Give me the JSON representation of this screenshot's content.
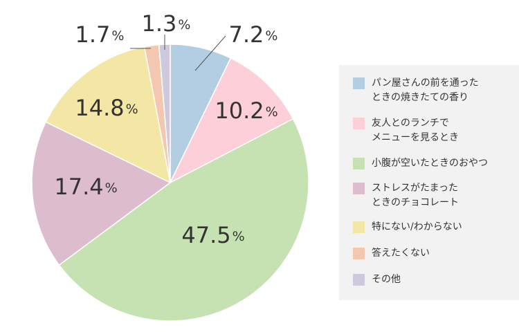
{
  "chart_data": {
    "type": "pie",
    "title": "",
    "start_angle_deg": 0,
    "direction": "clockwise",
    "categories": [
      "パン屋さんの前を通った\nときの焼きたての香り",
      "友人とのランチで\nメニューを見るとき",
      "小腹が空いたときのおやつ",
      "ストレスがたまった\nときのチョコレート",
      "特にない/わからない",
      "答えたくない",
      "その他"
    ],
    "values": [
      7.2,
      10.2,
      47.5,
      17.4,
      14.8,
      1.7,
      1.3
    ],
    "value_labels": [
      "7.2",
      "10.2",
      "47.5",
      "17.4",
      "14.8",
      "1.7",
      "1.3"
    ],
    "unit": "%",
    "colors": [
      "#b3cde3",
      "#fccfd9",
      "#c7e2b2",
      "#dcbccd",
      "#f4e6a4",
      "#f4c8b0",
      "#cfc9de"
    ],
    "legend_position": "right"
  }
}
